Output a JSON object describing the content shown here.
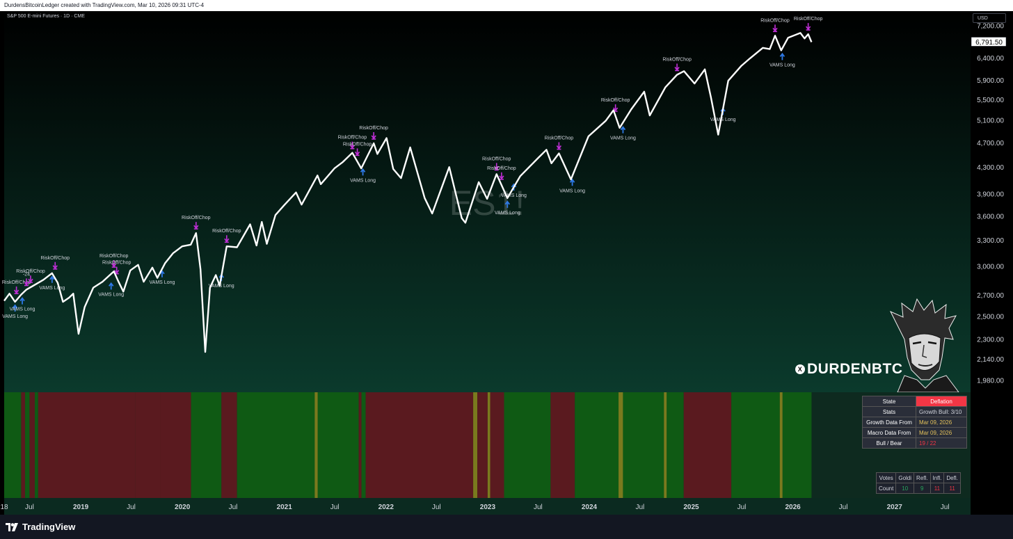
{
  "header": {
    "attribution": "DurdensBitcoinLedger created with TradingView.com, Mar 10, 2026 09:31 UTC-4",
    "symbol_line": "S&P 500 E-mini Futures · 1D · CME",
    "currency": "USD",
    "watermark": "ES1!"
  },
  "footer": {
    "brand": "TradingView"
  },
  "branding": {
    "handle": "DURDENBTC",
    "x_icon": "x-logo-icon"
  },
  "state_table": {
    "rows": [
      {
        "label": "State",
        "value": "Deflation"
      },
      {
        "label": "Stats",
        "value": "Growth Bull: 3/10"
      },
      {
        "label": "Growth Data From",
        "value": "Mar 09, 2026"
      },
      {
        "label": "Macro Data From",
        "value": "Mar 09, 2026"
      },
      {
        "label": "Bull / Bear",
        "value": "19 / 22"
      }
    ]
  },
  "votes_table": {
    "headers": [
      "Votes",
      "Goldi",
      "Refl.",
      "Infl.",
      "Defl."
    ],
    "row_label": "Count",
    "counts": [
      "10",
      "9",
      "11",
      "11"
    ]
  },
  "colors": {
    "bg_top": "#000000",
    "bg_bottom": "#0b3a2c",
    "line": "#ffffff",
    "signal_purple": "#c22fd9",
    "signal_blue": "#2e79e6",
    "regime_green": "#0f5a14",
    "regime_red": "#5a1a1f",
    "regime_yellow": "#7a7a1e",
    "last_price_bg": "#ffffff"
  },
  "chart_data": {
    "type": "line",
    "title": "S&P 500 E-mini Futures · 1D · CME",
    "ylabel": "USD",
    "y_scale": "log",
    "ylim": [
      1900,
      7600
    ],
    "xlim": [
      "2018-04-01",
      "2027-10-01"
    ],
    "last_price": "6,791.50",
    "y_ticks": [
      "7,200.00",
      "6,400.00",
      "5,900.00",
      "5,500.00",
      "5,100.00",
      "4,700.00",
      "4,300.00",
      "3,900.00",
      "3,600.00",
      "3,300.00",
      "3,000.00",
      "2,700.00",
      "2,500.00",
      "2,300.00",
      "2,140.00",
      "1,980.00"
    ],
    "x_ticks": [
      {
        "label": "18",
        "date": "2018-04-01"
      },
      {
        "label": "Jul",
        "date": "2018-07-01"
      },
      {
        "label": "2019",
        "date": "2019-01-01"
      },
      {
        "label": "Jul",
        "date": "2019-07-01"
      },
      {
        "label": "2020",
        "date": "2020-01-01"
      },
      {
        "label": "Jul",
        "date": "2020-07-01"
      },
      {
        "label": "2021",
        "date": "2021-01-01"
      },
      {
        "label": "Jul",
        "date": "2021-07-01"
      },
      {
        "label": "2022",
        "date": "2022-01-01"
      },
      {
        "label": "Jul",
        "date": "2022-07-01"
      },
      {
        "label": "2023",
        "date": "2023-01-01"
      },
      {
        "label": "Jul",
        "date": "2023-07-01"
      },
      {
        "label": "2024",
        "date": "2024-01-01"
      },
      {
        "label": "Jul",
        "date": "2024-07-01"
      },
      {
        "label": "2025",
        "date": "2025-01-01"
      },
      {
        "label": "Jul",
        "date": "2025-07-01"
      },
      {
        "label": "2026",
        "date": "2026-01-01"
      },
      {
        "label": "Jul",
        "date": "2026-07-01"
      },
      {
        "label": "2027",
        "date": "2027-01-01"
      },
      {
        "label": "Jul",
        "date": "2027-07-01"
      }
    ],
    "series": [
      {
        "values": [
          [
            "2018-04-01",
            2650
          ],
          [
            "2018-04-20",
            2720
          ],
          [
            "2018-05-10",
            2640
          ],
          [
            "2018-06-01",
            2710
          ],
          [
            "2018-06-20",
            2760
          ],
          [
            "2018-07-15",
            2800
          ],
          [
            "2018-08-20",
            2860
          ],
          [
            "2018-09-20",
            2930
          ],
          [
            "2018-10-10",
            2830
          ],
          [
            "2018-10-29",
            2640
          ],
          [
            "2018-11-20",
            2680
          ],
          [
            "2018-12-05",
            2720
          ],
          [
            "2018-12-24",
            2350
          ],
          [
            "2019-01-15",
            2590
          ],
          [
            "2019-02-15",
            2780
          ],
          [
            "2019-03-20",
            2840
          ],
          [
            "2019-04-30",
            2950
          ],
          [
            "2019-05-15",
            2850
          ],
          [
            "2019-06-03",
            2740
          ],
          [
            "2019-06-28",
            2960
          ],
          [
            "2019-07-26",
            3020
          ],
          [
            "2019-08-15",
            2840
          ],
          [
            "2019-09-15",
            2990
          ],
          [
            "2019-10-03",
            2880
          ],
          [
            "2019-10-31",
            3040
          ],
          [
            "2019-11-28",
            3150
          ],
          [
            "2019-12-31",
            3230
          ],
          [
            "2020-01-31",
            3250
          ],
          [
            "2020-02-19",
            3390
          ],
          [
            "2020-03-06",
            2970
          ],
          [
            "2020-03-23",
            2200
          ],
          [
            "2020-04-09",
            2780
          ],
          [
            "2020-04-30",
            2910
          ],
          [
            "2020-05-14",
            2800
          ],
          [
            "2020-06-08",
            3230
          ],
          [
            "2020-07-15",
            3220
          ],
          [
            "2020-08-31",
            3500
          ],
          [
            "2020-09-23",
            3240
          ],
          [
            "2020-10-12",
            3530
          ],
          [
            "2020-10-30",
            3260
          ],
          [
            "2020-11-30",
            3620
          ],
          [
            "2020-12-31",
            3750
          ],
          [
            "2021-02-12",
            3930
          ],
          [
            "2021-03-04",
            3760
          ],
          [
            "2021-04-30",
            4180
          ],
          [
            "2021-05-12",
            4050
          ],
          [
            "2021-06-30",
            4290
          ],
          [
            "2021-07-30",
            4390
          ],
          [
            "2021-09-02",
            4540
          ],
          [
            "2021-10-04",
            4290
          ],
          [
            "2021-11-18",
            4700
          ],
          [
            "2021-12-01",
            4520
          ],
          [
            "2022-01-03",
            4790
          ],
          [
            "2022-01-27",
            4280
          ],
          [
            "2022-02-24",
            4140
          ],
          [
            "2022-03-29",
            4630
          ],
          [
            "2022-05-20",
            3850
          ],
          [
            "2022-06-16",
            3640
          ],
          [
            "2022-08-16",
            4310
          ],
          [
            "2022-09-30",
            3580
          ],
          [
            "2022-10-13",
            3520
          ],
          [
            "2022-11-30",
            4080
          ],
          [
            "2022-12-30",
            3840
          ],
          [
            "2023-02-02",
            4200
          ],
          [
            "2023-03-13",
            3850
          ],
          [
            "2023-04-28",
            4170
          ],
          [
            "2023-06-30",
            4450
          ],
          [
            "2023-07-31",
            4590
          ],
          [
            "2023-08-18",
            4370
          ],
          [
            "2023-09-14",
            4530
          ],
          [
            "2023-10-27",
            4120
          ],
          [
            "2023-12-29",
            4820
          ],
          [
            "2024-02-29",
            5100
          ],
          [
            "2024-03-28",
            5300
          ],
          [
            "2024-04-19",
            4970
          ],
          [
            "2024-05-31",
            5320
          ],
          [
            "2024-07-16",
            5670
          ],
          [
            "2024-08-05",
            5200
          ],
          [
            "2024-09-30",
            5760
          ],
          [
            "2024-11-11",
            6030
          ],
          [
            "2024-12-06",
            6110
          ],
          [
            "2025-01-13",
            5840
          ],
          [
            "2025-02-19",
            6150
          ],
          [
            "2025-03-13",
            5550
          ],
          [
            "2025-04-08",
            4850
          ],
          [
            "2025-05-14",
            5900
          ],
          [
            "2025-06-30",
            6230
          ],
          [
            "2025-07-31",
            6400
          ],
          [
            "2025-09-15",
            6650
          ],
          [
            "2025-10-10",
            6620
          ],
          [
            "2025-10-29",
            6950
          ],
          [
            "2025-11-20",
            6590
          ],
          [
            "2025-12-15",
            6900
          ],
          [
            "2026-01-28",
            7020
          ],
          [
            "2026-02-12",
            6880
          ],
          [
            "2026-02-25",
            6990
          ],
          [
            "2026-03-09",
            6791.5
          ]
        ]
      }
    ],
    "annotations": [
      {
        "kind": "riskoff",
        "date": "2018-05-15",
        "value": 2680,
        "label": "RiskOff/Chop"
      },
      {
        "kind": "riskoff",
        "date": "2018-06-20",
        "value": 2760,
        "label": "-24"
      },
      {
        "kind": "riskoff",
        "date": "2018-07-05",
        "value": 2790,
        "label": "RiskOff/Chop"
      },
      {
        "kind": "riskoff",
        "date": "2018-10-01",
        "value": 2930,
        "label": "RiskOff/Chop"
      },
      {
        "kind": "vams",
        "date": "2018-05-10",
        "value": 2640,
        "label": "VAMS Long"
      },
      {
        "kind": "vams",
        "date": "2018-06-05",
        "value": 2710,
        "label": "VAMS Long"
      },
      {
        "kind": "vams",
        "date": "2018-09-20",
        "value": 2930,
        "label": "VAMS Long"
      },
      {
        "kind": "riskoff",
        "date": "2019-04-30",
        "value": 2950,
        "label": "RiskOff/Chop"
      },
      {
        "kind": "riskoff",
        "date": "2019-05-10",
        "value": 2880,
        "label": "RiskOff/Chop"
      },
      {
        "kind": "vams",
        "date": "2019-04-20",
        "value": 2860,
        "label": "VAMS Long"
      },
      {
        "kind": "vams",
        "date": "2019-10-20",
        "value": 2990,
        "label": "VAMS Long"
      },
      {
        "kind": "riskoff",
        "date": "2020-02-19",
        "value": 3390,
        "label": "RiskOff/Chop"
      },
      {
        "kind": "riskoff",
        "date": "2020-06-08",
        "value": 3230,
        "label": "RiskOff/Chop"
      },
      {
        "kind": "vams",
        "date": "2020-05-20",
        "value": 2950,
        "label": "VAMS Long"
      },
      {
        "kind": "riskoff",
        "date": "2021-09-02",
        "value": 4540,
        "label": "RiskOff/Chop"
      },
      {
        "kind": "riskoff",
        "date": "2021-09-20",
        "value": 4430,
        "label": "RiskOff/Chop"
      },
      {
        "kind": "riskoff",
        "date": "2021-11-18",
        "value": 4700,
        "label": "RiskOff/Chop"
      },
      {
        "kind": "vams",
        "date": "2021-10-10",
        "value": 4330,
        "label": "VAMS Long"
      },
      {
        "kind": "riskoff",
        "date": "2023-02-02",
        "value": 4200,
        "label": "RiskOff/Chop"
      },
      {
        "kind": "riskoff",
        "date": "2023-02-20",
        "value": 4060,
        "label": "RiskOff/Chop"
      },
      {
        "kind": "vams",
        "date": "2023-03-13",
        "value": 3850,
        "label": "VAMS Long"
      },
      {
        "kind": "vams",
        "date": "2023-04-05",
        "value": 4100,
        "label": "VAMS Long"
      },
      {
        "kind": "riskoff",
        "date": "2023-09-14",
        "value": 4530,
        "label": "RiskOff/Chop"
      },
      {
        "kind": "vams",
        "date": "2023-11-01",
        "value": 4170,
        "label": "VAMS Long"
      },
      {
        "kind": "riskoff",
        "date": "2024-04-04",
        "value": 5200,
        "label": "RiskOff/Chop"
      },
      {
        "kind": "vams",
        "date": "2024-05-01",
        "value": 5050,
        "label": "VAMS Long"
      },
      {
        "kind": "riskoff",
        "date": "2024-11-11",
        "value": 6030,
        "label": "RiskOff/Chop"
      },
      {
        "kind": "vams",
        "date": "2025-04-25",
        "value": 5400,
        "label": "VAMS Long"
      },
      {
        "kind": "riskoff",
        "date": "2025-10-29",
        "value": 6950,
        "label": "RiskOff/Chop"
      },
      {
        "kind": "vams",
        "date": "2025-11-24",
        "value": 6590,
        "label": "VAMS Long"
      },
      {
        "kind": "riskoff",
        "date": "2026-02-25",
        "value": 6990,
        "label": "RiskOff/Chop"
      }
    ],
    "regime_bands": [
      {
        "start": "2018-04-01",
        "end": "2018-06-01",
        "state": "green"
      },
      {
        "start": "2018-06-01",
        "end": "2018-06-15",
        "state": "red"
      },
      {
        "start": "2018-06-15",
        "end": "2018-07-01",
        "state": "green"
      },
      {
        "start": "2018-07-01",
        "end": "2018-07-20",
        "state": "red"
      },
      {
        "start": "2018-07-20",
        "end": "2018-08-01",
        "state": "green"
      },
      {
        "start": "2018-08-01",
        "end": "2019-07-15",
        "state": "red"
      },
      {
        "start": "2019-07-15",
        "end": "2019-10-15",
        "state": "red"
      },
      {
        "start": "2019-10-15",
        "end": "2020-02-01",
        "state": "red"
      },
      {
        "start": "2020-02-01",
        "end": "2020-05-20",
        "state": "green"
      },
      {
        "start": "2020-05-20",
        "end": "2020-07-15",
        "state": "red"
      },
      {
        "start": "2020-07-15",
        "end": "2021-04-20",
        "state": "green"
      },
      {
        "start": "2021-04-20",
        "end": "2021-05-01",
        "state": "yellow"
      },
      {
        "start": "2021-05-01",
        "end": "2021-09-25",
        "state": "green"
      },
      {
        "start": "2021-09-25",
        "end": "2021-10-05",
        "state": "red"
      },
      {
        "start": "2021-10-05",
        "end": "2021-10-20",
        "state": "green"
      },
      {
        "start": "2021-10-20",
        "end": "2022-11-10",
        "state": "red"
      },
      {
        "start": "2022-11-10",
        "end": "2022-11-25",
        "state": "yellow"
      },
      {
        "start": "2022-11-25",
        "end": "2023-01-01",
        "state": "red"
      },
      {
        "start": "2023-01-01",
        "end": "2023-01-10",
        "state": "yellow"
      },
      {
        "start": "2023-01-10",
        "end": "2023-03-01",
        "state": "red"
      },
      {
        "start": "2023-03-01",
        "end": "2023-08-15",
        "state": "green"
      },
      {
        "start": "2023-08-15",
        "end": "2023-11-10",
        "state": "red"
      },
      {
        "start": "2023-11-10",
        "end": "2024-04-15",
        "state": "green"
      },
      {
        "start": "2024-04-15",
        "end": "2024-05-01",
        "state": "yellow"
      },
      {
        "start": "2024-05-01",
        "end": "2024-09-25",
        "state": "green"
      },
      {
        "start": "2024-09-25",
        "end": "2024-10-05",
        "state": "yellow"
      },
      {
        "start": "2024-10-05",
        "end": "2024-12-05",
        "state": "green"
      },
      {
        "start": "2024-12-05",
        "end": "2025-05-25",
        "state": "red"
      },
      {
        "start": "2025-05-25",
        "end": "2025-11-15",
        "state": "green"
      },
      {
        "start": "2025-11-15",
        "end": "2025-11-25",
        "state": "yellow"
      },
      {
        "start": "2025-11-25",
        "end": "2026-03-09",
        "state": "green"
      }
    ]
  }
}
